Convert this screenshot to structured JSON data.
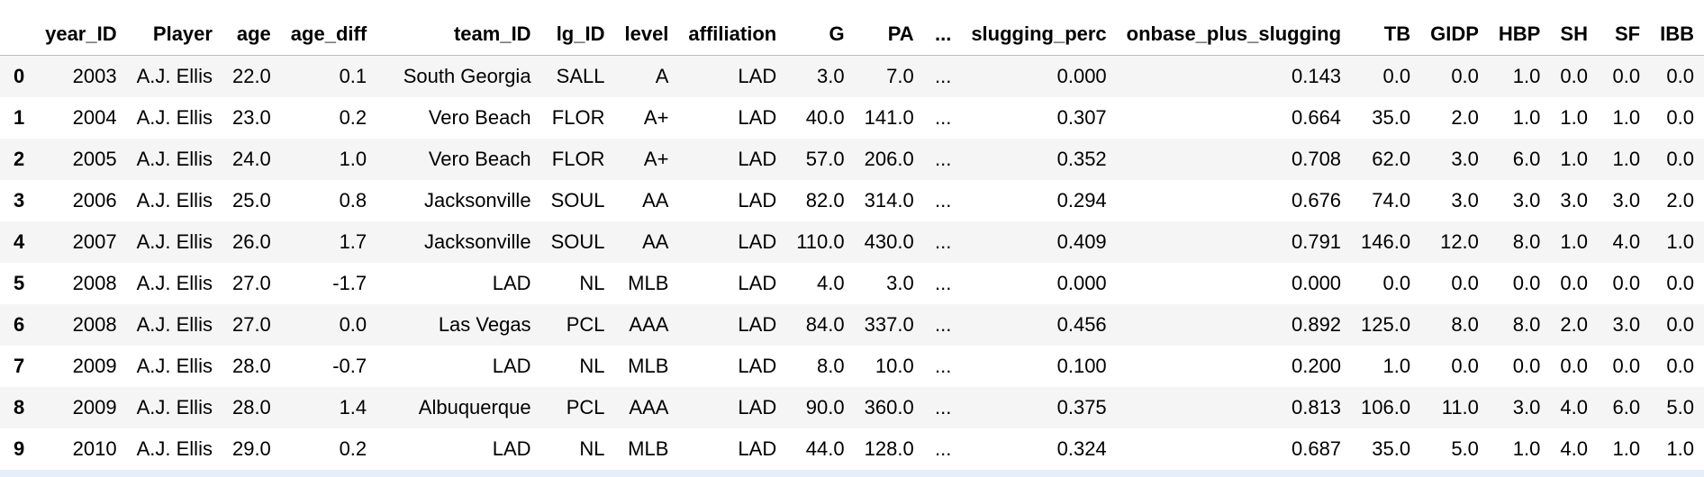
{
  "columns": [
    "year_ID",
    "Player",
    "age",
    "age_diff",
    "team_ID",
    "lg_ID",
    "level",
    "affiliation",
    "G",
    "PA",
    "...",
    "slugging_perc",
    "onbase_plus_slugging",
    "TB",
    "GIDP",
    "HBP",
    "SH",
    "SF",
    "IBB"
  ],
  "rows": [
    {
      "index": "0",
      "cells": [
        "2003",
        "A.J. Ellis",
        "22.0",
        "0.1",
        "South Georgia",
        "SALL",
        "A",
        "LAD",
        "3.0",
        "7.0",
        "...",
        "0.000",
        "0.143",
        "0.0",
        "0.0",
        "1.0",
        "0.0",
        "0.0",
        "0.0"
      ]
    },
    {
      "index": "1",
      "cells": [
        "2004",
        "A.J. Ellis",
        "23.0",
        "0.2",
        "Vero Beach",
        "FLOR",
        "A+",
        "LAD",
        "40.0",
        "141.0",
        "...",
        "0.307",
        "0.664",
        "35.0",
        "2.0",
        "1.0",
        "1.0",
        "1.0",
        "0.0"
      ]
    },
    {
      "index": "2",
      "cells": [
        "2005",
        "A.J. Ellis",
        "24.0",
        "1.0",
        "Vero Beach",
        "FLOR",
        "A+",
        "LAD",
        "57.0",
        "206.0",
        "...",
        "0.352",
        "0.708",
        "62.0",
        "3.0",
        "6.0",
        "1.0",
        "1.0",
        "0.0"
      ]
    },
    {
      "index": "3",
      "cells": [
        "2006",
        "A.J. Ellis",
        "25.0",
        "0.8",
        "Jacksonville",
        "SOUL",
        "AA",
        "LAD",
        "82.0",
        "314.0",
        "...",
        "0.294",
        "0.676",
        "74.0",
        "3.0",
        "3.0",
        "3.0",
        "3.0",
        "2.0"
      ]
    },
    {
      "index": "4",
      "cells": [
        "2007",
        "A.J. Ellis",
        "26.0",
        "1.7",
        "Jacksonville",
        "SOUL",
        "AA",
        "LAD",
        "110.0",
        "430.0",
        "...",
        "0.409",
        "0.791",
        "146.0",
        "12.0",
        "8.0",
        "1.0",
        "4.0",
        "1.0"
      ]
    },
    {
      "index": "5",
      "cells": [
        "2008",
        "A.J. Ellis",
        "27.0",
        "-1.7",
        "LAD",
        "NL",
        "MLB",
        "LAD",
        "4.0",
        "3.0",
        "...",
        "0.000",
        "0.000",
        "0.0",
        "0.0",
        "0.0",
        "0.0",
        "0.0",
        "0.0"
      ]
    },
    {
      "index": "6",
      "cells": [
        "2008",
        "A.J. Ellis",
        "27.0",
        "0.0",
        "Las Vegas",
        "PCL",
        "AAA",
        "LAD",
        "84.0",
        "337.0",
        "...",
        "0.456",
        "0.892",
        "125.0",
        "8.0",
        "8.0",
        "2.0",
        "3.0",
        "0.0"
      ]
    },
    {
      "index": "7",
      "cells": [
        "2009",
        "A.J. Ellis",
        "28.0",
        "-0.7",
        "LAD",
        "NL",
        "MLB",
        "LAD",
        "8.0",
        "10.0",
        "...",
        "0.100",
        "0.200",
        "1.0",
        "0.0",
        "0.0",
        "0.0",
        "0.0",
        "0.0"
      ]
    },
    {
      "index": "8",
      "cells": [
        "2009",
        "A.J. Ellis",
        "28.0",
        "1.4",
        "Albuquerque",
        "PCL",
        "AAA",
        "LAD",
        "90.0",
        "360.0",
        "...",
        "0.375",
        "0.813",
        "106.0",
        "11.0",
        "3.0",
        "4.0",
        "6.0",
        "5.0"
      ]
    },
    {
      "index": "9",
      "cells": [
        "2010",
        "A.J. Ellis",
        "29.0",
        "0.2",
        "LAD",
        "NL",
        "MLB",
        "LAD",
        "44.0",
        "128.0",
        "...",
        "0.324",
        "0.687",
        "35.0",
        "5.0",
        "1.0",
        "4.0",
        "1.0",
        "1.0"
      ]
    }
  ],
  "colors": {
    "stripe": "#f5f5f5",
    "header_rule": "#bdbdbd",
    "selection_strip": "#e6eef9"
  }
}
